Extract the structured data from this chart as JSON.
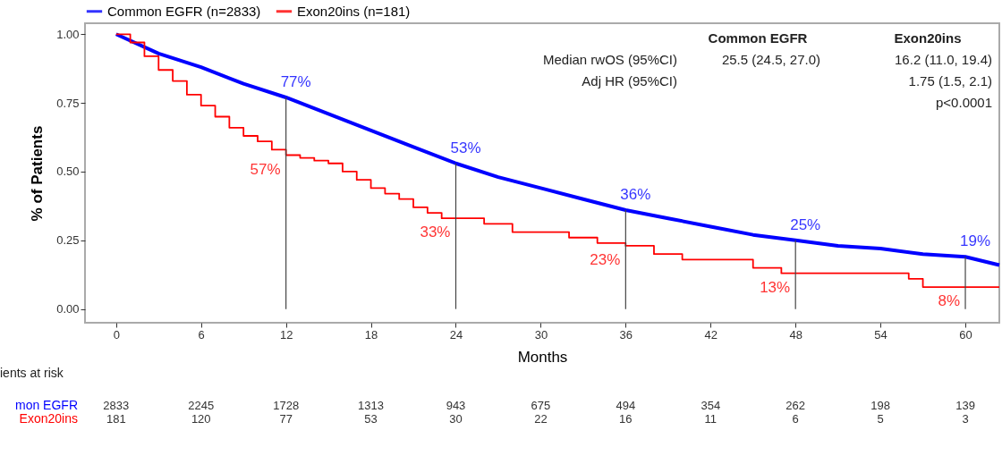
{
  "chart_data": [
    {
      "type": "step",
      "xlabel": "Months",
      "ylabel": "% of Patients",
      "legend": "top left",
      "xlim": [
        -2.2,
        62.4
      ],
      "ylim": [
        -0.05,
        1.04
      ],
      "xticks": [
        0,
        6,
        12,
        18,
        24,
        30,
        36,
        42,
        48,
        54,
        60
      ],
      "yticks": [
        {
          "value": 0,
          "label": "0.00"
        },
        {
          "value": 0.25,
          "label": "0.25"
        },
        {
          "value": 0.5,
          "label": "0.50"
        },
        {
          "value": 0.75,
          "label": "0.75"
        },
        {
          "value": 1,
          "label": "1.00"
        }
      ],
      "series": [
        {
          "name": "Common EGFR (n=2833)",
          "type": "line",
          "color": "#0000ff",
          "x": [
            0,
            3,
            6,
            9,
            12,
            15,
            18,
            21,
            24,
            27,
            30,
            33,
            36,
            39,
            42,
            45,
            48,
            51,
            54,
            57,
            60,
            62.4
          ],
          "values": [
            1,
            0.93,
            0.88,
            0.82,
            0.77,
            0.71,
            0.65,
            0.59,
            0.53,
            0.48,
            0.44,
            0.4,
            0.36,
            0.33,
            0.3,
            0.27,
            0.25,
            0.23,
            0.22,
            0.2,
            0.19,
            0.16
          ]
        },
        {
          "name": "Exon20ins (n=181)",
          "color": "#ff0000",
          "x": [
            0,
            1,
            2,
            3,
            4,
            5,
            6,
            7,
            8,
            9,
            10,
            11,
            12,
            13,
            14,
            15,
            16,
            17,
            18,
            19,
            20,
            21,
            22,
            23,
            26,
            28,
            32,
            34,
            36,
            38,
            40,
            45,
            47,
            56,
            57,
            62.4
          ],
          "values": [
            1,
            0.97,
            0.92,
            0.87,
            0.83,
            0.78,
            0.74,
            0.7,
            0.66,
            0.63,
            0.61,
            0.58,
            0.56,
            0.55,
            0.54,
            0.53,
            0.5,
            0.47,
            0.44,
            0.42,
            0.4,
            0.37,
            0.35,
            0.33,
            0.31,
            0.28,
            0.26,
            0.24,
            0.23,
            0.2,
            0.18,
            0.15,
            0.13,
            0.11,
            0.08,
            0.08
          ]
        }
      ],
      "ref_lines": [
        {
          "axis": "x",
          "value": 12
        },
        {
          "axis": "x",
          "value": 24
        },
        {
          "axis": "x",
          "value": 36
        },
        {
          "axis": "x",
          "value": 48
        },
        {
          "axis": "x",
          "value": 60
        }
      ],
      "annotations": [
        {
          "text": "77%",
          "x": 12,
          "y": 0.77
        },
        {
          "text": "53%",
          "x": 24,
          "y": 0.53
        },
        {
          "text": "36%",
          "x": 36,
          "y": 0.36
        },
        {
          "text": "25%",
          "x": 48,
          "y": 0.25
        },
        {
          "text": "19%",
          "x": 60,
          "y": 0.19
        },
        {
          "text": "57%",
          "x": 12,
          "y": 0.56
        },
        {
          "text": "33%",
          "x": 24,
          "y": 0.33
        },
        {
          "text": "23%",
          "x": 36,
          "y": 0.23
        },
        {
          "text": "13%",
          "x": 48,
          "y": 0.13
        },
        {
          "text": "8%",
          "x": 60,
          "y": 0.08
        },
        "Common EGFR",
        "Exon20ins",
        "Median rwOS (95%CI)",
        "25.5 (24.5, 27.0)",
        "16.2 (11.0, 19.4)",
        "Adj HR (95%CI)",
        "1.75 (1.5, 2.1)",
        "p<0.0001"
      ]
    },
    {
      "type": "other",
      "title": "ients at risk",
      "y_categories": [
        "mon EGFR",
        "Exon20ins"
      ],
      "colors": [
        "#0000ff",
        "#ff0000"
      ],
      "cell_labels": [
        [
          "2833",
          "2245",
          "1728",
          "1313",
          "943",
          "675",
          "494",
          "354",
          "262",
          "198",
          "139"
        ],
        [
          "181",
          "120",
          "77",
          "53",
          "30",
          "22",
          "16",
          "11",
          "6",
          "5",
          "3"
        ]
      ]
    }
  ]
}
